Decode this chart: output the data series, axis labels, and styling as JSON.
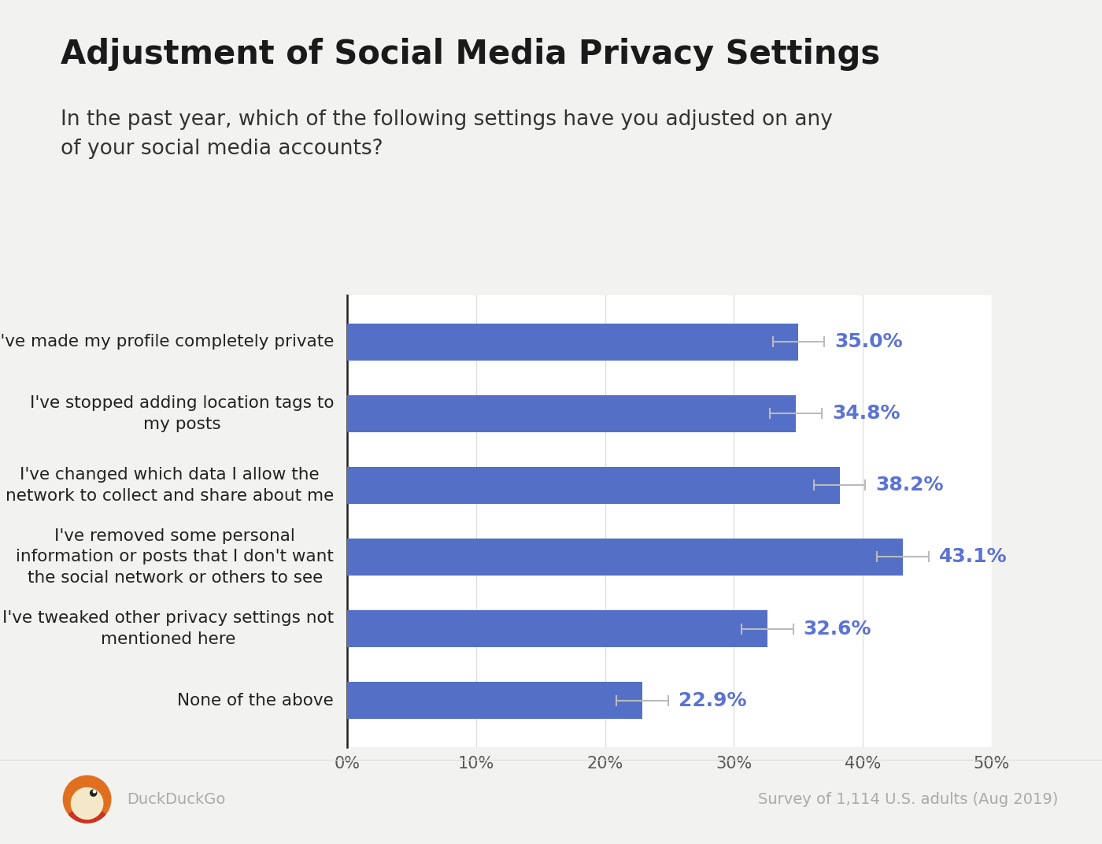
{
  "title": "Adjustment of Social Media Privacy Settings",
  "subtitle": "In the past year, which of the following settings have you adjusted on any\nof your social media accounts?",
  "categories": [
    "I've made my profile completely private",
    "I've stopped adding location tags to\nmy posts",
    "I've changed which data I allow the\nnetwork to collect and share about me",
    "I've removed some personal\ninformation or posts that I don't want\nthe social network or others to see",
    "I've tweaked other privacy settings not\nmentioned here",
    "None of the above"
  ],
  "values": [
    35.0,
    34.8,
    38.2,
    43.1,
    32.6,
    22.9
  ],
  "errors": [
    2.0,
    2.0,
    2.0,
    2.0,
    2.0,
    2.0
  ],
  "bar_color": "#5470c6",
  "label_color": "#5b73d4",
  "chart_bg": "#ffffff",
  "background_color": "#f2f2f0",
  "title_fontsize": 30,
  "subtitle_fontsize": 19,
  "label_fontsize": 15.5,
  "tick_fontsize": 15,
  "value_fontsize": 18,
  "footer_text_left": "DuckDuckGo",
  "footer_text_right": "Survey of 1,114 U.S. adults (Aug 2019)",
  "xlim": [
    0,
    50
  ],
  "xticks": [
    0,
    10,
    20,
    30,
    40,
    50
  ],
  "xtick_labels": [
    "0%",
    "10%",
    "20%",
    "30%",
    "40%",
    "50%"
  ]
}
